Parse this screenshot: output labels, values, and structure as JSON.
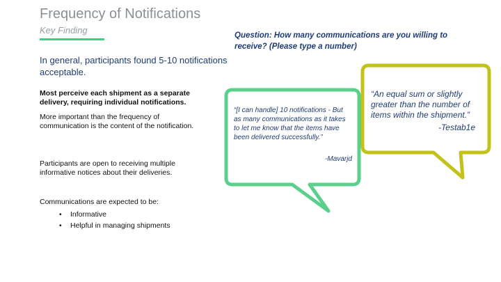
{
  "colors": {
    "accent_green": "#3fce85",
    "bubble_green": "#5bcf8c",
    "bubble_olive": "#c3c21a",
    "title_gray": "#8a8f95",
    "navy": "#1f3c78"
  },
  "header": {
    "title": "Frequency of Notifications",
    "subtitle": "Key Finding"
  },
  "left": {
    "intro": "In general, participants found 5-10 notifications acceptable.",
    "bold_point": "Most perceive each shipment as a separate delivery, requiring individual notifications.",
    "para1": "More important than the frequency of communication is the content of the notification.",
    "para2": "Participants are open to receiving multiple informative notices about their deliveries.",
    "para3": "Communications are expected to be:",
    "bullets": [
      "Informative",
      "Helpful in managing shipments"
    ]
  },
  "right": {
    "question": "Question:  How many communications are you willing to receive? (Please type a number)",
    "quotes": [
      {
        "text": "“[I can handle] 10 notifications - But as many communications as it takes to let me know that the items have been delivered successfully.”",
        "author": "-Mavarjd"
      },
      {
        "text": "“An equal sum or slightly greater than the number of items within the shipment.”",
        "author": "-Testab1e"
      }
    ]
  }
}
